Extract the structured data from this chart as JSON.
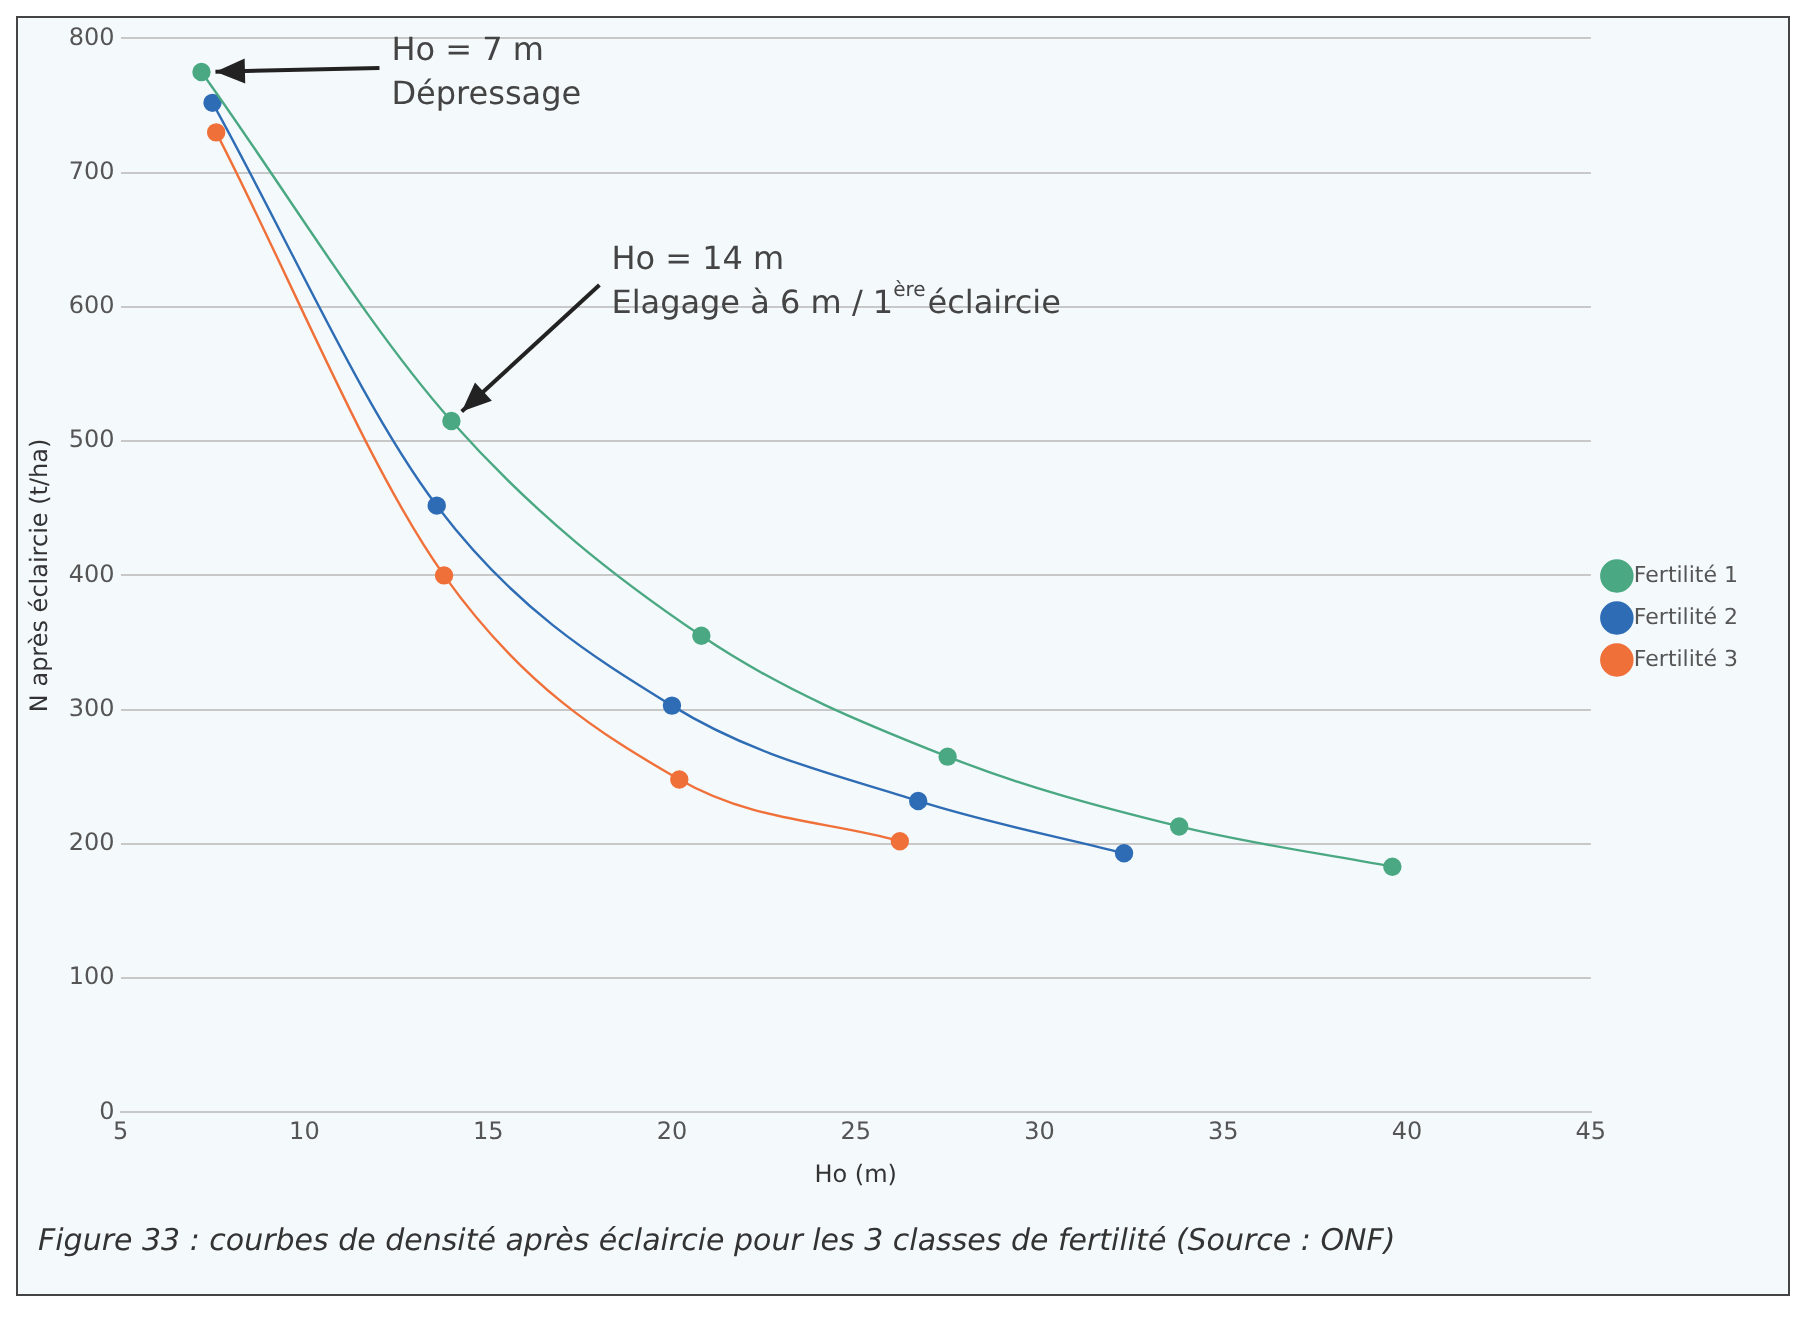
{
  "chart_data": {
    "type": "line",
    "xlabel": "Ho (m)",
    "ylabel": "N après éclaircie (t/ha)",
    "xlim": [
      5,
      45
    ],
    "xticks": [
      5,
      10,
      15,
      20,
      25,
      30,
      35,
      40,
      45
    ],
    "ylim": [
      0,
      800
    ],
    "yticks": [
      0,
      100,
      200,
      300,
      400,
      500,
      600,
      700,
      800
    ],
    "grid": "y",
    "legend": "right",
    "marker": "circle",
    "line_style": "solid",
    "series": [
      {
        "name": "Fertilité 1",
        "color": "#4aa882",
        "x": [
          7.2,
          14,
          20.8,
          27.5,
          33.8,
          39.6
        ],
        "values": [
          775,
          515,
          355,
          265,
          213,
          183
        ]
      },
      {
        "name": "Fertilité 2",
        "color": "#2e6db5",
        "x": [
          7.5,
          13.6,
          20,
          26.7,
          32.3
        ],
        "values": [
          752,
          452,
          303,
          232,
          193
        ]
      },
      {
        "name": "Fertilité 3",
        "color": "#f0703a",
        "x": [
          7.6,
          13.8,
          20.2,
          26.2
        ],
        "values": [
          730,
          400,
          248,
          202
        ]
      }
    ],
    "annotations": [
      {
        "text": "Ho = 7 m\nDépressage",
        "x": 7.2,
        "y": 775
      },
      {
        "text": "Ho = 14 m\nElagage à 6 m / 1$^{ère}$éclaircie",
        "x": 14,
        "y": 515
      },
      "Figure 33 : courbes de densité après éclaircie pour les 3 classes de fertilité (Source : ONF)"
    ]
  }
}
